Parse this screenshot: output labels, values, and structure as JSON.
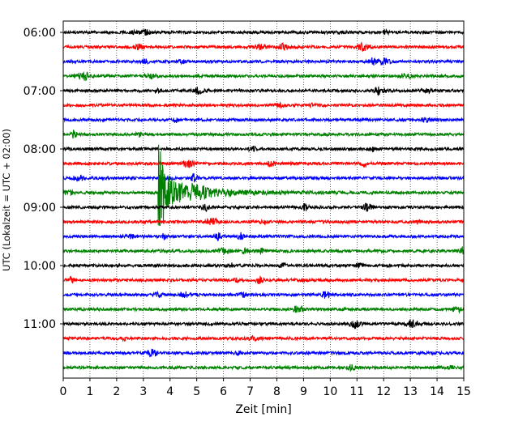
{
  "chart_data": {
    "type": "line",
    "xlabel": "Zeit  [min]",
    "ylabel": "UTC (Lokalzeit = UTC + 02:00)",
    "xlim": [
      0,
      15
    ],
    "x_ticks": [
      "0",
      "1",
      "2",
      "3",
      "4",
      "5",
      "6",
      "7",
      "8",
      "9",
      "10",
      "11",
      "12",
      "13",
      "14",
      "15"
    ],
    "y_ticks": [
      "06:00",
      "07:00",
      "08:00",
      "09:00",
      "10:00",
      "11:00"
    ],
    "grid": "vertical dotted",
    "trace_interval_min": 15,
    "trace_colors": [
      "#000000",
      "#ff0000",
      "#0000ff",
      "#008000"
    ],
    "traces": [
      {
        "start": "06:00",
        "color": "#000000"
      },
      {
        "start": "06:15",
        "color": "#ff0000"
      },
      {
        "start": "06:30",
        "color": "#0000ff"
      },
      {
        "start": "06:45",
        "color": "#008000"
      },
      {
        "start": "07:00",
        "color": "#000000"
      },
      {
        "start": "07:15",
        "color": "#ff0000"
      },
      {
        "start": "07:30",
        "color": "#0000ff"
      },
      {
        "start": "07:45",
        "color": "#008000"
      },
      {
        "start": "08:00",
        "color": "#000000"
      },
      {
        "start": "08:15",
        "color": "#ff0000"
      },
      {
        "start": "08:30",
        "color": "#0000ff"
      },
      {
        "start": "08:45",
        "color": "#008000"
      },
      {
        "start": "09:00",
        "color": "#000000"
      },
      {
        "start": "09:15",
        "color": "#ff0000"
      },
      {
        "start": "09:30",
        "color": "#0000ff"
      },
      {
        "start": "09:45",
        "color": "#008000"
      },
      {
        "start": "10:00",
        "color": "#000000"
      },
      {
        "start": "10:15",
        "color": "#ff0000"
      },
      {
        "start": "10:30",
        "color": "#0000ff"
      },
      {
        "start": "10:45",
        "color": "#008000"
      },
      {
        "start": "11:00",
        "color": "#000000"
      },
      {
        "start": "11:15",
        "color": "#ff0000"
      },
      {
        "start": "11:30",
        "color": "#0000ff"
      },
      {
        "start": "11:45",
        "color": "#008000"
      }
    ],
    "events": [
      {
        "trace": "08:45",
        "onset_min": 3.55,
        "type": "earthquake"
      }
    ]
  }
}
